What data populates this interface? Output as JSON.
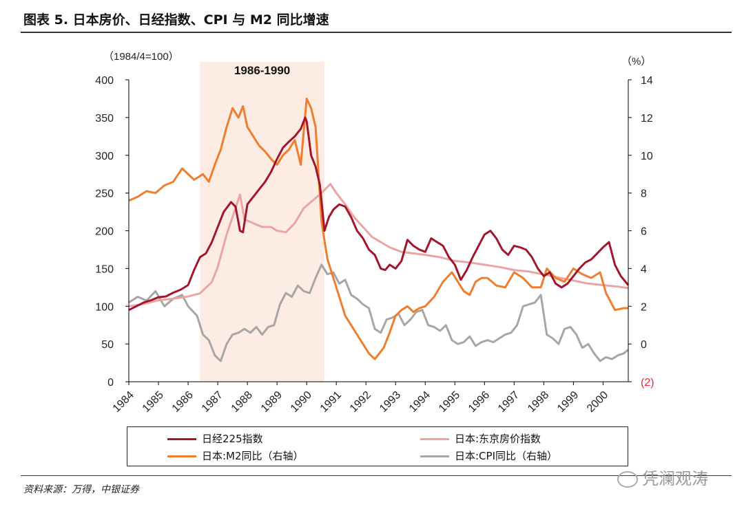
{
  "figure": {
    "title": "图表 5. 日本房价、日经指数、CPI 与 M2 同比增速",
    "source": "资料来源：万得，中银证券",
    "watermark": "凭澜观涛"
  },
  "chart_data": {
    "type": "line",
    "left_axis_unit": "（1984/4=100）",
    "right_axis_unit": "（%）",
    "left_ylim": [
      0,
      400
    ],
    "left_ticks": [
      "0",
      "50",
      "100",
      "150",
      "200",
      "250",
      "300",
      "350",
      "400"
    ],
    "right_ylim": [
      -2,
      14
    ],
    "right_ticks": [
      "(2)",
      "0",
      "2",
      "4",
      "6",
      "8",
      "10",
      "12",
      "14"
    ],
    "x_ticks": [
      "1984",
      "1985",
      "1986",
      "1987",
      "1988",
      "1989",
      "1990",
      "1991",
      "1992",
      "1993",
      "1994",
      "1995",
      "1996",
      "1997",
      "1998",
      "1999",
      "2000"
    ],
    "xlim": [
      1984.0,
      2000.85
    ],
    "shaded_region": {
      "label": "1986-1990",
      "start": 1986.4,
      "end": 1990.6
    },
    "colors": {
      "nikkei": "#a3152a",
      "tokyo": "#eaa4a4",
      "m2": "#ee7e2d",
      "cpi": "#a6a6a6",
      "shade": "#fdece4"
    },
    "series": [
      {
        "key": "nikkei",
        "name": "日经225指数",
        "axis": "left",
        "x": [
          1984.0,
          1984.25,
          1984.5,
          1984.75,
          1985.0,
          1985.25,
          1985.5,
          1985.75,
          1986.0,
          1986.2,
          1986.4,
          1986.6,
          1986.8,
          1987.0,
          1987.2,
          1987.45,
          1987.6,
          1987.75,
          1987.85,
          1988.0,
          1988.2,
          1988.4,
          1988.6,
          1988.8,
          1989.0,
          1989.2,
          1989.4,
          1989.6,
          1989.8,
          1989.95,
          1990.0,
          1990.15,
          1990.3,
          1990.45,
          1990.6,
          1990.75,
          1990.9,
          1991.1,
          1991.3,
          1991.5,
          1991.7,
          1991.9,
          1992.1,
          1992.3,
          1992.5,
          1992.65,
          1992.8,
          1993.0,
          1993.2,
          1993.4,
          1993.6,
          1993.8,
          1994.0,
          1994.2,
          1994.4,
          1994.6,
          1994.8,
          1995.0,
          1995.2,
          1995.4,
          1995.6,
          1995.8,
          1996.0,
          1996.2,
          1996.4,
          1996.6,
          1996.8,
          1997.0,
          1997.2,
          1997.4,
          1997.6,
          1997.8,
          1998.0,
          1998.2,
          1998.4,
          1998.6,
          1998.8,
          1999.0,
          1999.2,
          1999.4,
          1999.6,
          1999.8,
          2000.0,
          2000.2,
          2000.4,
          2000.6,
          2000.85
        ],
        "values": [
          95,
          100,
          105,
          108,
          112,
          113,
          118,
          122,
          128,
          148,
          165,
          170,
          185,
          205,
          225,
          238,
          232,
          200,
          198,
          235,
          245,
          255,
          265,
          278,
          295,
          310,
          318,
          325,
          335,
          350,
          345,
          300,
          285,
          260,
          200,
          218,
          228,
          235,
          232,
          218,
          200,
          190,
          175,
          168,
          150,
          148,
          155,
          150,
          160,
          188,
          180,
          175,
          172,
          190,
          185,
          180,
          165,
          155,
          135,
          148,
          165,
          180,
          195,
          200,
          190,
          175,
          168,
          180,
          178,
          175,
          165,
          150,
          140,
          145,
          130,
          125,
          130,
          140,
          150,
          158,
          162,
          170,
          178,
          185,
          155,
          140,
          128
        ]
      },
      {
        "key": "tokyo",
        "name": "日本:东京房价指数",
        "axis": "left",
        "x": [
          1984.0,
          1984.5,
          1985.0,
          1985.5,
          1986.0,
          1986.4,
          1986.8,
          1987.0,
          1987.3,
          1987.6,
          1987.75,
          1987.9,
          1988.2,
          1988.5,
          1988.8,
          1989.0,
          1989.3,
          1989.6,
          1989.9,
          1990.2,
          1990.5,
          1990.8,
          1991.0,
          1991.3,
          1991.6,
          1991.9,
          1992.2,
          1992.5,
          1992.8,
          1993.2,
          1993.6,
          1994.0,
          1994.5,
          1995.0,
          1995.5,
          1996.0,
          1996.5,
          1997.0,
          1997.5,
          1998.0,
          1998.5,
          1999.0,
          1999.5,
          2000.0,
          2000.5,
          2000.85
        ],
        "values": [
          100,
          103,
          108,
          110,
          113,
          117,
          132,
          152,
          195,
          230,
          248,
          215,
          210,
          205,
          205,
          200,
          198,
          210,
          230,
          240,
          250,
          262,
          250,
          235,
          218,
          205,
          192,
          185,
          178,
          172,
          170,
          168,
          165,
          160,
          158,
          155,
          152,
          148,
          146,
          142,
          138,
          134,
          130,
          128,
          126,
          124
        ]
      },
      {
        "key": "m2",
        "name": "日本:M2同比（右轴）",
        "axis": "right",
        "x": [
          1984.0,
          1984.3,
          1984.6,
          1984.9,
          1985.2,
          1985.5,
          1985.8,
          1986.0,
          1986.2,
          1986.5,
          1986.7,
          1986.9,
          1987.1,
          1987.3,
          1987.5,
          1987.7,
          1987.85,
          1988.0,
          1988.2,
          1988.4,
          1988.6,
          1988.8,
          1989.0,
          1989.2,
          1989.4,
          1989.6,
          1989.8,
          1990.0,
          1990.15,
          1990.3,
          1990.5,
          1990.7,
          1990.9,
          1991.1,
          1991.3,
          1991.5,
          1991.7,
          1991.9,
          1992.1,
          1992.3,
          1992.45,
          1992.6,
          1992.8,
          1993.0,
          1993.2,
          1993.4,
          1993.6,
          1993.8,
          1994.0,
          1994.3,
          1994.6,
          1994.9,
          1995.1,
          1995.3,
          1995.5,
          1995.7,
          1995.9,
          1996.1,
          1996.4,
          1996.7,
          1997.0,
          1997.3,
          1997.6,
          1997.9,
          1998.1,
          1998.4,
          1998.7,
          1999.0,
          1999.3,
          1999.6,
          1999.9,
          2000.1,
          2000.4,
          2000.7,
          2000.85
        ],
        "values": [
          7.6,
          7.8,
          8.1,
          8.0,
          8.4,
          8.6,
          9.3,
          9.0,
          8.7,
          9.0,
          8.6,
          9.5,
          10.3,
          11.5,
          12.5,
          12.0,
          12.6,
          11.5,
          11.0,
          10.5,
          10.2,
          9.8,
          9.5,
          10.0,
          10.3,
          10.8,
          9.5,
          13.0,
          12.5,
          11.5,
          6.5,
          4.5,
          3.5,
          2.5,
          1.5,
          1.0,
          0.5,
          0.0,
          -0.5,
          -0.8,
          -0.5,
          -0.2,
          0.6,
          1.5,
          1.8,
          2.0,
          1.7,
          1.9,
          2.0,
          2.5,
          3.3,
          3.8,
          3.3,
          2.8,
          2.6,
          3.3,
          3.5,
          3.5,
          3.1,
          3.0,
          3.8,
          3.5,
          3.0,
          3.0,
          4.0,
          3.5,
          3.3,
          4.0,
          3.7,
          3.5,
          3.8,
          2.7,
          1.8,
          1.9,
          1.9
        ]
      },
      {
        "key": "cpi",
        "name": "日本:CPI同比（右轴）",
        "axis": "right",
        "x": [
          1984.0,
          1984.3,
          1984.6,
          1984.9,
          1985.2,
          1985.5,
          1985.8,
          1986.0,
          1986.3,
          1986.5,
          1986.7,
          1986.9,
          1987.1,
          1987.3,
          1987.5,
          1987.7,
          1987.9,
          1988.1,
          1988.3,
          1988.5,
          1988.7,
          1988.9,
          1989.1,
          1989.3,
          1989.5,
          1989.7,
          1989.9,
          1990.1,
          1990.3,
          1990.5,
          1990.7,
          1990.9,
          1991.1,
          1991.3,
          1991.5,
          1991.7,
          1991.9,
          1992.1,
          1992.3,
          1992.5,
          1992.7,
          1992.9,
          1993.1,
          1993.3,
          1993.5,
          1993.7,
          1993.9,
          1994.1,
          1994.3,
          1994.5,
          1994.7,
          1994.9,
          1995.1,
          1995.3,
          1995.5,
          1995.7,
          1995.9,
          1996.1,
          1996.3,
          1996.5,
          1996.7,
          1996.9,
          1997.1,
          1997.3,
          1997.5,
          1997.7,
          1997.9,
          1998.1,
          1998.3,
          1998.5,
          1998.7,
          1998.9,
          1999.1,
          1999.3,
          1999.5,
          1999.7,
          1999.9,
          2000.1,
          2000.3,
          2000.5,
          2000.7,
          2000.85
        ],
        "values": [
          2.2,
          2.5,
          2.3,
          2.8,
          2.0,
          2.4,
          2.6,
          2.0,
          1.5,
          0.5,
          0.2,
          -0.6,
          -0.9,
          0.0,
          0.5,
          0.6,
          0.8,
          0.6,
          0.9,
          0.5,
          0.9,
          1.0,
          2.1,
          2.7,
          2.5,
          3.1,
          2.8,
          2.7,
          3.5,
          4.2,
          3.7,
          3.8,
          3.2,
          3.4,
          2.6,
          2.4,
          2.1,
          1.9,
          0.8,
          0.6,
          1.3,
          1.4,
          1.6,
          1.0,
          1.3,
          1.7,
          1.8,
          1.0,
          0.9,
          0.7,
          1.0,
          0.2,
          0.0,
          0.1,
          0.4,
          -0.1,
          0.1,
          0.2,
          0.1,
          0.3,
          0.5,
          0.6,
          1.0,
          2.0,
          2.1,
          2.2,
          2.6,
          0.5,
          0.3,
          0.0,
          0.8,
          0.9,
          0.5,
          -0.2,
          0.0,
          -0.5,
          -0.9,
          -0.7,
          -0.8,
          -0.6,
          -0.5,
          -0.3
        ]
      }
    ]
  }
}
